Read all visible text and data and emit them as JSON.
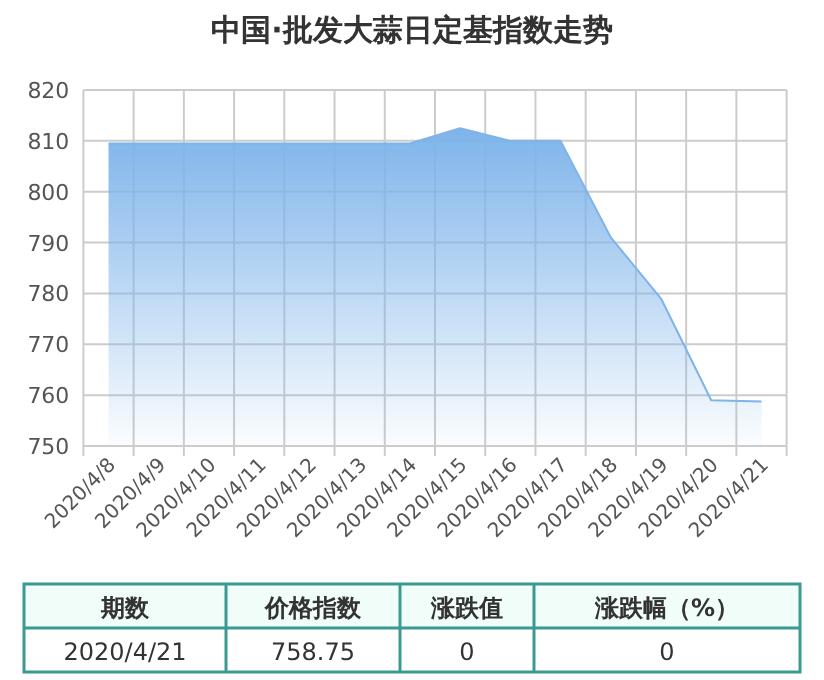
{
  "chart_data": {
    "type": "area",
    "title": "中国·批发大蒜日定基指数走势",
    "categories": [
      "2020/4/8",
      "2020/4/9",
      "2020/4/10",
      "2020/4/11",
      "2020/4/12",
      "2020/4/13",
      "2020/4/14",
      "2020/4/15",
      "2020/4/16",
      "2020/4/17",
      "2020/4/18",
      "2020/4/19",
      "2020/4/20",
      "2020/4/21"
    ],
    "series": [
      {
        "color": "#7eb4ea",
        "values": [
          809.5,
          809.5,
          809.5,
          809.5,
          809.5,
          809.5,
          809.5,
          812.5,
          810,
          810,
          791,
          779,
          759,
          758.75
        ]
      }
    ],
    "ylim": [
      750,
      820
    ],
    "yticks": [
      750,
      760,
      770,
      780,
      790,
      800,
      810,
      820
    ],
    "grid": true,
    "annotations": [
      "期数",
      "价格指数",
      "涨跌值",
      "涨跌幅（%）",
      "2020/4/21",
      "758.75",
      "0",
      "0"
    ]
  }
}
